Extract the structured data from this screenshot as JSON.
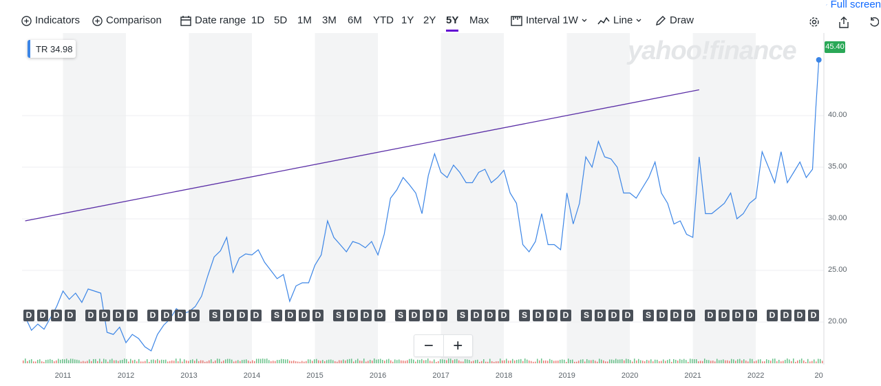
{
  "toolbar": {
    "indicators": "Indicators",
    "comparison": "Comparison",
    "date_range": "Date range",
    "ranges": [
      "1D",
      "5D",
      "1M",
      "3M",
      "6M",
      "YTD",
      "1Y",
      "2Y",
      "5Y",
      "Max"
    ],
    "active_range": "5Y",
    "interval_label": "Interval",
    "interval_value": "1W",
    "chart_type": "Line",
    "draw": "Draw",
    "full_screen": "Full screen"
  },
  "legend": {
    "symbol": "TR",
    "value": "34.98"
  },
  "last_price": "45.40",
  "watermark": "yahoo!finance",
  "event_markers": [
    "D",
    "D",
    "D",
    "D",
    "D",
    "D",
    "D",
    "D",
    "D",
    "D",
    "D",
    "D",
    "S",
    "D",
    "D",
    "D",
    "S",
    "D",
    "D",
    "D",
    "S",
    "D",
    "D",
    "D",
    "S",
    "D",
    "D",
    "D",
    "S",
    "D",
    "D",
    "D",
    "S",
    "D",
    "D",
    "D",
    "S",
    "D",
    "D",
    "D",
    "S",
    "D",
    "D",
    "D",
    "D",
    "D",
    "D",
    "D",
    "D",
    "D",
    "D",
    "D",
    "D",
    "S",
    "D",
    "D",
    "D",
    "S",
    "D",
    "D"
  ],
  "zoom": {
    "out": "−",
    "in": "+"
  },
  "colors": {
    "accent": "#6001d2",
    "line": "#3b85e6",
    "trend": "#5a2ea6",
    "badge": "#2aa857"
  },
  "chart_data": {
    "type": "line",
    "title": "",
    "xlabel": "",
    "ylabel": "",
    "ylim": [
      16,
      48
    ],
    "yticks": [
      "20.00",
      "25.00",
      "30.00",
      "35.00",
      "40.00"
    ],
    "xticks": [
      "2011",
      "2012",
      "2013",
      "2014",
      "2015",
      "2016",
      "2017",
      "2018",
      "2019",
      "2020",
      "2021",
      "2022",
      "20"
    ],
    "series": [
      {
        "name": "TR",
        "x": [
          2010.4,
          2010.5,
          2010.6,
          2010.7,
          2010.8,
          2010.9,
          2011.0,
          2011.1,
          2011.2,
          2011.3,
          2011.4,
          2011.5,
          2011.6,
          2011.7,
          2011.8,
          2011.9,
          2012.0,
          2012.1,
          2012.2,
          2012.3,
          2012.4,
          2012.5,
          2012.6,
          2012.7,
          2012.8,
          2012.9,
          2013.0,
          2013.1,
          2013.2,
          2013.3,
          2013.4,
          2013.5,
          2013.6,
          2013.7,
          2013.8,
          2013.9,
          2014.0,
          2014.1,
          2014.2,
          2014.3,
          2014.4,
          2014.5,
          2014.6,
          2014.7,
          2014.8,
          2014.9,
          2015.0,
          2015.1,
          2015.2,
          2015.3,
          2015.4,
          2015.5,
          2015.6,
          2015.7,
          2015.8,
          2015.9,
          2016.0,
          2016.1,
          2016.2,
          2016.3,
          2016.4,
          2016.5,
          2016.6,
          2016.7,
          2016.8,
          2016.9,
          2017.0,
          2017.1,
          2017.2,
          2017.3,
          2017.4,
          2017.5,
          2017.6,
          2017.7,
          2017.8,
          2017.9,
          2018.0,
          2018.1,
          2018.2,
          2018.3,
          2018.4,
          2018.5,
          2018.6,
          2018.7,
          2018.8,
          2018.9,
          2019.0,
          2019.1,
          2019.2,
          2019.3,
          2019.4,
          2019.5,
          2019.6,
          2019.7,
          2019.8,
          2019.9,
          2020.0,
          2020.1,
          2020.2,
          2020.3,
          2020.4,
          2020.5,
          2020.6,
          2020.7,
          2020.8,
          2020.9,
          2021.0,
          2021.1,
          2021.2,
          2021.3,
          2021.4,
          2021.5,
          2021.6,
          2021.7,
          2021.8,
          2021.9,
          2022.0,
          2022.1,
          2022.2,
          2022.3,
          2022.4,
          2022.5,
          2022.6,
          2022.7,
          2022.8,
          2022.9,
          2022.95,
          2023.0
        ],
        "values": [
          20.5,
          19.2,
          19.8,
          19.3,
          20.4,
          21.5,
          23.0,
          22.2,
          22.8,
          21.9,
          23.2,
          23.0,
          22.8,
          19.0,
          18.8,
          19.5,
          18.0,
          18.8,
          18.4,
          17.6,
          17.2,
          18.8,
          19.7,
          20.3,
          21.3,
          20.8,
          21.0,
          21.5,
          22.5,
          24.5,
          26.3,
          26.9,
          28.2,
          24.8,
          26.2,
          26.6,
          26.5,
          27.0,
          25.8,
          25.0,
          24.2,
          24.6,
          22.0,
          23.5,
          23.8,
          23.8,
          25.5,
          26.5,
          29.8,
          28.2,
          27.5,
          26.8,
          27.8,
          27.6,
          27.2,
          27.8,
          26.5,
          28.5,
          32.0,
          32.8,
          34.0,
          33.3,
          32.5,
          30.5,
          34.2,
          36.3,
          34.5,
          34.0,
          35.2,
          34.5,
          33.5,
          33.5,
          34.5,
          34.8,
          33.5,
          34.0,
          34.7,
          32.5,
          31.5,
          27.5,
          26.8,
          27.8,
          30.5,
          27.5,
          27.5,
          27.0,
          32.5,
          29.5,
          31.5,
          36.0,
          35.0,
          37.5,
          36.0,
          35.8,
          35.0,
          32.5,
          32.5,
          32.0,
          33.0,
          34.0,
          35.5,
          32.5,
          31.5,
          29.5,
          29.8,
          28.5,
          28.2,
          36.0,
          30.5,
          30.5,
          31.0,
          31.5,
          32.5,
          30.0,
          30.5,
          31.5,
          32.0,
          36.5,
          35.0,
          33.5,
          36.5,
          33.5,
          34.5,
          35.5,
          34.0,
          34.8,
          40.5,
          45.4
        ]
      }
    ],
    "trendline": {
      "x": [
        2010.4,
        2021.1
      ],
      "values": [
        29.8,
        42.5
      ]
    }
  }
}
